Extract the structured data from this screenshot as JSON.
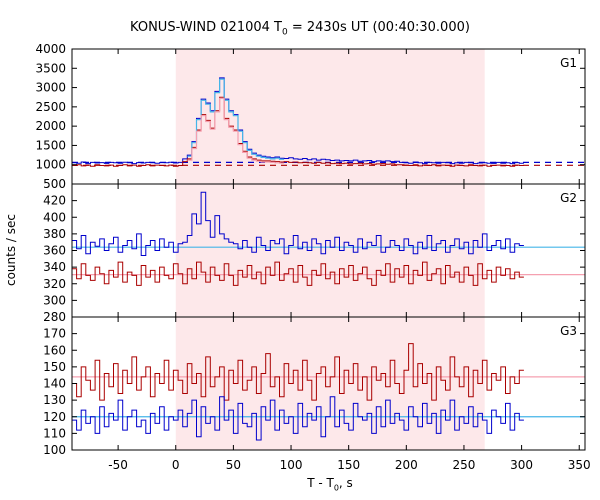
{
  "title_parts": {
    "main": "KONUS-WIND 021004 T",
    "sub": "0",
    "rest": " = 2430s UT (00:40:30.000)"
  },
  "ylabel": "counts / sec",
  "xlabel_parts": {
    "main": "T - T",
    "sub": "0",
    "rest": ", s"
  },
  "chart_data": {
    "type": "line",
    "title": "KONUS-WIND 021004 T0 = 2430s UT (00:40:30.000)",
    "xlabel": "T - T0, s",
    "ylabel": "counts / sec",
    "xlim": [
      -90,
      355
    ],
    "xticks": [
      -50,
      0,
      50,
      100,
      150,
      200,
      250,
      300,
      350
    ],
    "shaded_interval": [
      0,
      268
    ],
    "colors": {
      "blue": "#0000cc",
      "red": "#aa0000",
      "cyan": "#45b5e8",
      "pink": "#f5a0b0",
      "shade": "#fde8ea"
    },
    "panels": [
      {
        "name": "G1",
        "ylim": [
          500,
          4000
        ],
        "yticks": [
          500,
          1000,
          1500,
          2000,
          2500,
          3000,
          3500,
          4000
        ],
        "series": [
          {
            "color": "blue",
            "bin": 4,
            "x0": -90,
            "values": [
              1050,
              1040,
              1070,
              1030,
              1060,
              1045,
              1055,
              1035,
              1060,
              1050,
              1040,
              1065,
              1050,
              1030,
              1055,
              1045,
              1060,
              1050,
              1040,
              1055,
              1050,
              1065,
              1045,
              1060,
              1150,
              1250,
              1600,
              2200,
              2700,
              2600,
              2400,
              2900,
              3250,
              2700,
              2400,
              2300,
              1900,
              1600,
              1400,
              1300,
              1250,
              1220,
              1200,
              1180,
              1200,
              1170,
              1160,
              1180,
              1150,
              1140,
              1160,
              1130,
              1150,
              1120,
              1140,
              1130,
              1110,
              1120,
              1100,
              1110,
              1100,
              1120,
              1090,
              1100,
              1110,
              1080,
              1100,
              1090,
              1100,
              1080,
              1090,
              1060,
              1050,
              1040,
              1070,
              1050,
              1030,
              1060,
              1050,
              1040,
              1060,
              1050,
              1030,
              1050,
              1040,
              1060,
              1050,
              1030,
              1045,
              1050,
              1040,
              1035,
              1060,
              1040,
              1050,
              1030,
              1055,
              1040
            ]
          },
          {
            "color": "red",
            "bin": 4,
            "x0": -90,
            "values": [
              980,
              1000,
              970,
              990,
              960,
              1000,
              980,
              970,
              990,
              960,
              980,
              1000,
              970,
              990,
              960,
              980,
              1000,
              970,
              990,
              980,
              970,
              990,
              960,
              980,
              1080,
              1150,
              1450,
              1900,
              2300,
              2150,
              1950,
              2400,
              2750,
              2200,
              2000,
              1900,
              1550,
              1350,
              1200,
              1150,
              1120,
              1100,
              1100,
              1090,
              1080,
              1070,
              1080,
              1060,
              1070,
              1050,
              1060,
              1050,
              1040,
              1060,
              1040,
              1050,
              1030,
              1040,
              1030,
              1040,
              1020,
              1030,
              1040,
              1020,
              1030,
              1010,
              1020,
              1030,
              1010,
              1020,
              1000,
              1000,
              990,
              980,
              1000,
              970,
              990,
              980,
              1000,
              970,
              990,
              980,
              960,
              990,
              980,
              970,
              1000,
              980,
              970,
              990,
              960,
              980,
              990,
              970,
              980,
              960,
              990,
              980
            ]
          }
        ],
        "background_fits": [
          {
            "color": "blue",
            "value": 1060,
            "dashed": true
          },
          {
            "color": "red",
            "value": 985,
            "dashed": true
          }
        ],
        "peak_curves": [
          {
            "color": "cyan",
            "values_from": "blue"
          },
          {
            "color": "pink",
            "values_from": "red"
          }
        ]
      },
      {
        "name": "G2",
        "ylim": [
          280,
          440
        ],
        "yticks": [
          280,
          300,
          320,
          340,
          360,
          380,
          400,
          420
        ],
        "series": [
          {
            "color": "blue",
            "bin": 4,
            "x0": -90,
            "values": [
              372,
              362,
              378,
              356,
              370,
              365,
              374,
              360,
              368,
              376,
              358,
              366,
              372,
              362,
              380,
              354,
              366,
              372,
              360,
              374,
              364,
              370,
              358,
              368,
              370,
              378,
              404,
              392,
              430,
              396,
              376,
              402,
              380,
              374,
              370,
              368,
              362,
              372,
              364,
              358,
              376,
              366,
              360,
              372,
              368,
              374,
              356,
              366,
              378,
              362,
              370,
              360,
              374,
              368,
              356,
              372,
              364,
              376,
              360,
              370,
              366,
              358,
              374,
              362,
              370,
              366,
              378,
              358,
              364,
              372,
              366,
              360,
              374,
              366,
              356,
              370,
              362,
              378,
              360,
              368,
              372,
              358,
              366,
              374,
              362,
              370,
              356,
              372,
              364,
              380,
              360,
              366,
              372,
              362,
              374,
              358,
              368,
              366
            ]
          },
          {
            "color": "red",
            "bin": 4,
            "x0": -90,
            "values": [
              338,
              326,
              344,
              330,
              324,
              340,
              332,
              320,
              336,
              328,
              346,
              322,
              334,
              330,
              318,
              342,
              328,
              336,
              322,
              340,
              330,
              326,
              344,
              332,
              320,
              338,
              326,
              346,
              334,
              322,
              340,
              330,
              324,
              344,
              330,
              318,
              336,
              328,
              342,
              326,
              334,
              320,
              340,
              330,
              346,
              324,
              332,
              338,
              322,
              342,
              328,
              318,
              336,
              330,
              344,
              326,
              334,
              320,
              338,
              328,
              342,
              324,
              332,
              340,
              326,
              318,
              336,
              330,
              344,
              322,
              338,
              328,
              342,
              320,
              336,
              330,
              346,
              324,
              332,
              338,
              320,
              342,
              328,
              334,
              322,
              340,
              330,
              318,
              344,
              326,
              336,
              322,
              340,
              330,
              338,
              326,
              334,
              328
            ]
          }
        ],
        "background_fits": [
          {
            "color": "cyan",
            "value": 364,
            "dashed": false
          },
          {
            "color": "pink",
            "value": 331,
            "dashed": false
          }
        ]
      },
      {
        "name": "G3",
        "ylim": [
          100,
          180
        ],
        "yticks": [
          100,
          110,
          120,
          130,
          140,
          150,
          160,
          170
        ],
        "series": [
          {
            "color": "red",
            "bin": 4,
            "x0": -90,
            "values": [
              140,
              132,
              150,
              142,
              136,
              154,
              130,
              146,
              138,
              152,
              134,
              148,
              140,
              156,
              136,
              144,
              150,
              132,
              146,
              140,
              154,
              136,
              148,
              142,
              134,
              152,
              140,
              146,
              132,
              156,
              138,
              144,
              150,
              130,
              148,
              140,
              154,
              136,
              142,
              150,
              134,
              146,
              158,
              138,
              144,
              132,
              152,
              140,
              148,
              136,
              154,
              142,
              130,
              146,
              150,
              138,
              144,
              156,
              134,
              148,
              140,
              152,
              136,
              144,
              130,
              150,
              142,
              146,
              138,
              154,
              140,
              134,
              148,
              164,
              138,
              152,
              140,
              146,
              130,
              150,
              142,
              136,
              156,
              144,
              138,
              150,
              132,
              148,
              140,
              154,
              136,
              146,
              142,
              150,
              134,
              144,
              140,
              148
            ]
          },
          {
            "color": "blue",
            "bin": 4,
            "x0": -90,
            "values": [
              118,
              112,
              124,
              116,
              120,
              110,
              126,
              114,
              122,
              118,
              130,
              112,
              120,
              124,
              114,
              118,
              110,
              122,
              116,
              126,
              112,
              120,
              118,
              124,
              114,
              122,
              130,
              108,
              126,
              116,
              120,
              112,
              132,
              118,
              124,
              110,
              128,
              116,
              114,
              122,
              106,
              126,
              118,
              130,
              112,
              124,
              116,
              120,
              110,
              128,
              114,
              122,
              118,
              126,
              108,
              120,
              132,
              114,
              124,
              116,
              112,
              128,
              120,
              118,
              122,
              110,
              126,
              114,
              130,
              116,
              122,
              118,
              112,
              126,
              120,
              114,
              128,
              116,
              122,
              110,
              124,
              118,
              130,
              112,
              120,
              116,
              126,
              114,
              122,
              118,
              110,
              124,
              120,
              116,
              128,
              112,
              122,
              118
            ]
          }
        ],
        "background_fits": [
          {
            "color": "pink",
            "value": 144,
            "dashed": false
          },
          {
            "color": "cyan",
            "value": 120,
            "dashed": false
          }
        ]
      }
    ]
  }
}
